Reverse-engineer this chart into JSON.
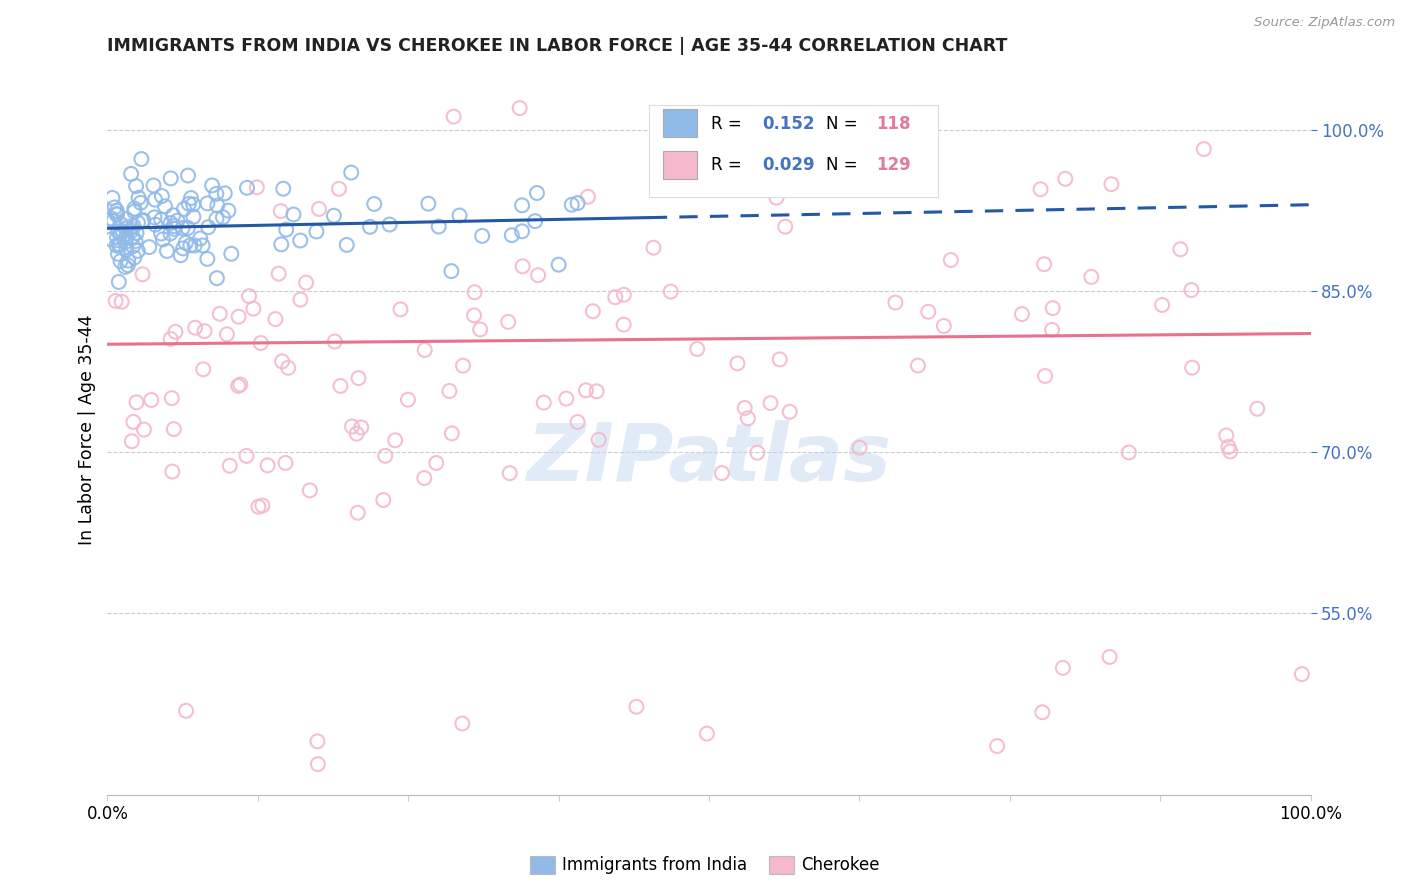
{
  "title": "IMMIGRANTS FROM INDIA VS CHEROKEE IN LABOR FORCE | AGE 35-44 CORRELATION CHART",
  "source": "Source: ZipAtlas.com",
  "ylabel": "In Labor Force | Age 35-44",
  "right_yticks": [
    "55.0%",
    "70.0%",
    "85.0%",
    "100.0%"
  ],
  "right_ytick_vals": [
    0.55,
    0.7,
    0.85,
    1.0
  ],
  "xlim": [
    0.0,
    1.0
  ],
  "ylim": [
    0.38,
    1.06
  ],
  "legend_india_R": "0.152",
  "legend_india_N": "118",
  "legend_cherokee_R": "0.029",
  "legend_cherokee_N": "129",
  "india_color": "#90BAE8",
  "cherokee_color": "#F5B8CC",
  "india_line_color": "#2457A4",
  "cherokee_line_color": "#E8728E",
  "india_trend_x0": 0.0,
  "india_trend_x1": 0.45,
  "india_trend_x2": 1.0,
  "india_trend_y0": 0.908,
  "india_trend_y1": 0.918,
  "india_trend_y2": 0.93,
  "cherokee_trend_y0": 0.8,
  "cherokee_trend_y1": 0.81,
  "watermark_text": "ZIPatlas",
  "background_color": "#FFFFFF",
  "grid_color": "#CCCCCC",
  "title_color": "#222222",
  "right_axis_color": "#4472C4",
  "legend_R_color": "#4472C4",
  "legend_N_color": "#E07AA0",
  "xtick_labels": [
    "0.0%",
    "100.0%"
  ],
  "bottom_legend_india": "Immigrants from India",
  "bottom_legend_cherokee": "Cherokee"
}
